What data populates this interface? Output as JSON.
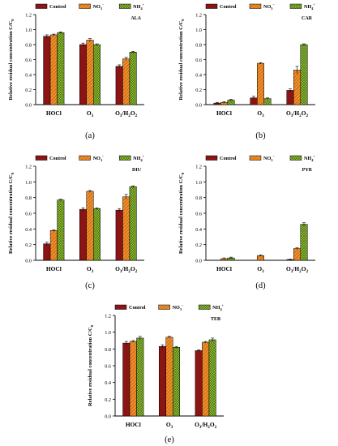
{
  "figure": {
    "shared": {
      "ylabel": "Relative residual concentration C/C",
      "ylabel_sub": "0",
      "categories": [
        {
          "base": "HOCl",
          "sub1": "",
          "mid": "",
          "sub2": ""
        },
        {
          "base": "O",
          "sub1": "3",
          "mid": "",
          "sub2": ""
        },
        {
          "base": "O",
          "sub1": "3",
          "mid": "/H",
          "sub2": "2",
          "tail": "O",
          "sub3": "2"
        }
      ],
      "legend": [
        {
          "text": "Control",
          "sub": "",
          "sup": ""
        },
        {
          "text": "NO",
          "sub": "3",
          "sup": "−"
        },
        {
          "text": "NH",
          "sub": "4",
          "sup": "+"
        }
      ],
      "yticks": [
        "0.0",
        "0.2",
        "0.4",
        "0.6",
        "0.8",
        "1.0",
        "1.2"
      ],
      "colors": {
        "control": "#8b1414",
        "no3": "#f28c28",
        "nh4": "#9acd32"
      }
    },
    "panels": [
      {
        "id": "a",
        "caption": "(a)",
        "tag": "ALA"
      },
      {
        "id": "b",
        "caption": "(b)",
        "tag": "CAR"
      },
      {
        "id": "c",
        "caption": "(c)",
        "tag": "DIU"
      },
      {
        "id": "d",
        "caption": "(d)",
        "tag": "PYR"
      },
      {
        "id": "e",
        "caption": "(e)",
        "tag": "TEB"
      }
    ]
  },
  "chart_data": [
    {
      "type": "bar",
      "panel": "(a)",
      "title": "ALA",
      "categories": [
        "HOCl",
        "O3",
        "O3/H2O2"
      ],
      "ylim": [
        0,
        1.2
      ],
      "legend_position": "top",
      "series": [
        {
          "name": "Control",
          "values": [
            0.91,
            0.8,
            0.51
          ],
          "errors": [
            0.02,
            0.02,
            0.02
          ]
        },
        {
          "name": "NO3-",
          "values": [
            0.93,
            0.86,
            0.61
          ],
          "errors": [
            0.01,
            0.02,
            0.02
          ]
        },
        {
          "name": "NH4+",
          "values": [
            0.96,
            0.8,
            0.7
          ],
          "errors": [
            0.01,
            0.01,
            0.01
          ]
        }
      ]
    },
    {
      "type": "bar",
      "panel": "(b)",
      "title": "CAR",
      "categories": [
        "HOCl",
        "O3",
        "O3/H2O2"
      ],
      "ylim": [
        0,
        1.2
      ],
      "legend_position": "top",
      "series": [
        {
          "name": "Control",
          "values": [
            0.02,
            0.09,
            0.19
          ],
          "errors": [
            0.01,
            0.02,
            0.02
          ]
        },
        {
          "name": "NO3-",
          "values": [
            0.03,
            0.55,
            0.46
          ],
          "errors": [
            0.01,
            0.01,
            0.05
          ]
        },
        {
          "name": "NH4+",
          "values": [
            0.06,
            0.08,
            0.8
          ],
          "errors": [
            0.01,
            0.01,
            0.01
          ]
        }
      ]
    },
    {
      "type": "bar",
      "panel": "(c)",
      "title": "DIU",
      "categories": [
        "HOCl",
        "O3",
        "O3/H2O2"
      ],
      "ylim": [
        0,
        1.2
      ],
      "legend_position": "top",
      "series": [
        {
          "name": "Control",
          "values": [
            0.21,
            0.65,
            0.64
          ],
          "errors": [
            0.02,
            0.02,
            0.02
          ]
        },
        {
          "name": "NO3-",
          "values": [
            0.38,
            0.88,
            0.81
          ],
          "errors": [
            0.01,
            0.01,
            0.03
          ]
        },
        {
          "name": "NH4+",
          "values": [
            0.77,
            0.66,
            0.94
          ],
          "errors": [
            0.01,
            0.01,
            0.01
          ]
        }
      ]
    },
    {
      "type": "bar",
      "panel": "(d)",
      "title": "PYR",
      "categories": [
        "HOCl",
        "O3",
        "O3/H2O2"
      ],
      "ylim": [
        0,
        1.2
      ],
      "legend_position": "top",
      "series": [
        {
          "name": "Control",
          "values": [
            0.0,
            0.0,
            0.01
          ],
          "errors": [
            0.0,
            0.0,
            0.005
          ]
        },
        {
          "name": "NO3-",
          "values": [
            0.02,
            0.06,
            0.15
          ],
          "errors": [
            0.01,
            0.01,
            0.01
          ]
        },
        {
          "name": "NH4+",
          "values": [
            0.03,
            0.0,
            0.46
          ],
          "errors": [
            0.01,
            0.0,
            0.02
          ]
        }
      ]
    },
    {
      "type": "bar",
      "panel": "(e)",
      "title": "TEB",
      "categories": [
        "HOCl",
        "O3",
        "O3/H2O2"
      ],
      "ylim": [
        0,
        1.2
      ],
      "legend_position": "top",
      "series": [
        {
          "name": "Control",
          "values": [
            0.87,
            0.83,
            0.78
          ],
          "errors": [
            0.02,
            0.02,
            0.01
          ]
        },
        {
          "name": "NO3-",
          "values": [
            0.89,
            0.94,
            0.88
          ],
          "errors": [
            0.01,
            0.01,
            0.01
          ]
        },
        {
          "name": "NH4+",
          "values": [
            0.93,
            0.82,
            0.91
          ],
          "errors": [
            0.02,
            0.01,
            0.02
          ]
        }
      ]
    }
  ]
}
